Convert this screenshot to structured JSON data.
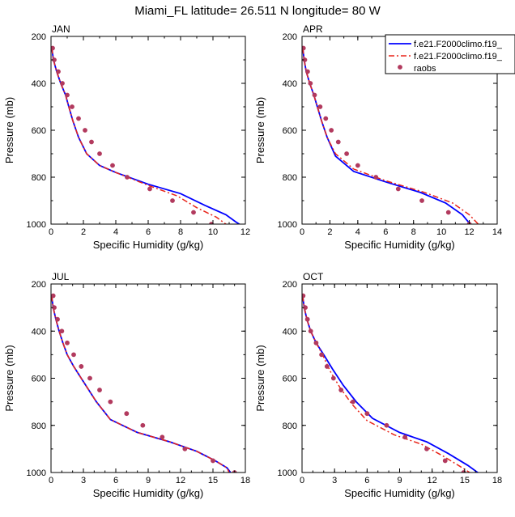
{
  "title": "Miami_FL  latitude= 26.511 N longitude= 80 W",
  "legend": {
    "entries": [
      "f.e21.F2000climo.f19_",
      "f.e21.F2000climo.f19_",
      "raobs"
    ]
  },
  "colors": {
    "model1": "#0000ff",
    "model2": "#e8251a",
    "obs": "#b23a5e"
  },
  "chart_data": [
    {
      "type": "line",
      "month": "JAN",
      "xlabel": "Specific Humidity (g/kg)",
      "ylabel": "Pressure (mb)",
      "xlim": [
        0,
        12
      ],
      "xticks": [
        0,
        2,
        4,
        6,
        8,
        10,
        12
      ],
      "ylim": [
        1000,
        200
      ],
      "yticks": [
        200,
        400,
        600,
        800,
        1000
      ],
      "series": [
        {
          "style": "solid",
          "points": [
            [
              0.05,
              250
            ],
            [
              0.15,
              300
            ],
            [
              0.35,
              350
            ],
            [
              0.6,
              400
            ],
            [
              0.9,
              450
            ],
            [
              1.1,
              500
            ],
            [
              1.35,
              560
            ],
            [
              1.7,
              630
            ],
            [
              2.2,
              700
            ],
            [
              3.0,
              750
            ],
            [
              4.0,
              780
            ],
            [
              6.0,
              830
            ],
            [
              8.0,
              870
            ],
            [
              9.5,
              920
            ],
            [
              10.8,
              960
            ],
            [
              11.4,
              990
            ],
            [
              11.85,
              1010
            ]
          ]
        },
        {
          "style": "dashed",
          "points": [
            [
              0.05,
              250
            ],
            [
              0.15,
              300
            ],
            [
              0.35,
              350
            ],
            [
              0.6,
              400
            ],
            [
              0.9,
              450
            ],
            [
              1.1,
              500
            ],
            [
              1.35,
              560
            ],
            [
              1.7,
              630
            ],
            [
              2.2,
              700
            ],
            [
              3.0,
              750
            ],
            [
              4.0,
              780
            ],
            [
              6.0,
              835
            ],
            [
              7.8,
              880
            ],
            [
              9.0,
              930
            ],
            [
              10.2,
              970
            ],
            [
              11.0,
              1010
            ]
          ]
        },
        {
          "name": "raobs",
          "style": "markers",
          "points": [
            [
              0.1,
              250
            ],
            [
              0.2,
              300
            ],
            [
              0.45,
              350
            ],
            [
              0.7,
              400
            ],
            [
              1.0,
              450
            ],
            [
              1.3,
              500
            ],
            [
              1.7,
              550
            ],
            [
              2.1,
              600
            ],
            [
              2.5,
              650
            ],
            [
              3.0,
              700
            ],
            [
              3.8,
              750
            ],
            [
              4.7,
              800
            ],
            [
              6.1,
              850
            ],
            [
              7.5,
              900
            ],
            [
              8.8,
              950
            ],
            [
              9.9,
              1000
            ]
          ]
        }
      ]
    },
    {
      "type": "line",
      "month": "APR",
      "xlabel": "Specific Humidity (g/kg)",
      "ylabel": "Pressure (mb)",
      "xlim": [
        0,
        14
      ],
      "xticks": [
        0,
        2,
        4,
        6,
        8,
        10,
        12,
        14
      ],
      "ylim": [
        1000,
        200
      ],
      "yticks": [
        200,
        400,
        600,
        800,
        1000
      ],
      "series": [
        {
          "style": "solid",
          "points": [
            [
              0.05,
              250
            ],
            [
              0.15,
              300
            ],
            [
              0.3,
              350
            ],
            [
              0.55,
              400
            ],
            [
              0.85,
              450
            ],
            [
              1.1,
              500
            ],
            [
              1.4,
              560
            ],
            [
              1.8,
              630
            ],
            [
              2.4,
              710
            ],
            [
              3.7,
              775
            ],
            [
              6.0,
              820
            ],
            [
              8.5,
              865
            ],
            [
              10.3,
              910
            ],
            [
              11.5,
              960
            ],
            [
              12.2,
              1010
            ]
          ]
        },
        {
          "style": "dashed",
          "points": [
            [
              0.05,
              250
            ],
            [
              0.15,
              300
            ],
            [
              0.3,
              350
            ],
            [
              0.55,
              400
            ],
            [
              0.85,
              450
            ],
            [
              1.1,
              500
            ],
            [
              1.4,
              560
            ],
            [
              1.8,
              630
            ],
            [
              2.4,
              700
            ],
            [
              3.7,
              765
            ],
            [
              6.0,
              815
            ],
            [
              8.8,
              865
            ],
            [
              10.8,
              910
            ],
            [
              12.0,
              960
            ],
            [
              12.8,
              1010
            ]
          ]
        },
        {
          "name": "raobs",
          "style": "markers",
          "points": [
            [
              0.1,
              250
            ],
            [
              0.2,
              300
            ],
            [
              0.4,
              350
            ],
            [
              0.6,
              400
            ],
            [
              0.9,
              450
            ],
            [
              1.3,
              500
            ],
            [
              1.7,
              550
            ],
            [
              2.1,
              600
            ],
            [
              2.6,
              650
            ],
            [
              3.2,
              700
            ],
            [
              4.0,
              750
            ],
            [
              5.3,
              800
            ],
            [
              6.9,
              850
            ],
            [
              8.6,
              900
            ],
            [
              10.5,
              950
            ],
            [
              12.0,
              1000
            ]
          ]
        }
      ]
    },
    {
      "type": "line",
      "month": "JUL",
      "xlabel": "Specific Humidity (g/kg)",
      "ylabel": "Pressure (mb)",
      "xlim": [
        0,
        18
      ],
      "xticks": [
        0,
        3,
        6,
        9,
        12,
        15,
        18
      ],
      "ylim": [
        1000,
        200
      ],
      "yticks": [
        200,
        400,
        600,
        800,
        1000
      ],
      "series": [
        {
          "style": "solid",
          "points": [
            [
              0.05,
              250
            ],
            [
              0.2,
              300
            ],
            [
              0.45,
              350
            ],
            [
              0.75,
              400
            ],
            [
              1.1,
              450
            ],
            [
              1.5,
              500
            ],
            [
              2.1,
              550
            ],
            [
              2.8,
              600
            ],
            [
              3.5,
              650
            ],
            [
              4.2,
              700
            ],
            [
              5.5,
              775
            ],
            [
              8.0,
              830
            ],
            [
              11.0,
              870
            ],
            [
              13.5,
              910
            ],
            [
              15.2,
              950
            ],
            [
              16.3,
              980
            ],
            [
              16.8,
              1010
            ]
          ]
        },
        {
          "style": "dashed",
          "points": [
            [
              0.05,
              250
            ],
            [
              0.2,
              300
            ],
            [
              0.45,
              350
            ],
            [
              0.75,
              400
            ],
            [
              1.1,
              450
            ],
            [
              1.5,
              500
            ],
            [
              2.1,
              550
            ],
            [
              2.8,
              600
            ],
            [
              3.5,
              650
            ],
            [
              4.2,
              700
            ],
            [
              5.5,
              775
            ],
            [
              8.0,
              830
            ],
            [
              11.0,
              870
            ],
            [
              13.5,
              910
            ],
            [
              15.2,
              950
            ],
            [
              16.3,
              980
            ],
            [
              16.6,
              1010
            ]
          ]
        },
        {
          "name": "raobs",
          "style": "markers",
          "points": [
            [
              0.2,
              250
            ],
            [
              0.3,
              300
            ],
            [
              0.6,
              350
            ],
            [
              1.0,
              400
            ],
            [
              1.5,
              450
            ],
            [
              2.1,
              500
            ],
            [
              2.8,
              550
            ],
            [
              3.6,
              600
            ],
            [
              4.5,
              650
            ],
            [
              5.5,
              700
            ],
            [
              7.0,
              750
            ],
            [
              8.5,
              800
            ],
            [
              10.3,
              850
            ],
            [
              12.4,
              900
            ],
            [
              15.0,
              950
            ],
            [
              17.0,
              1000
            ]
          ]
        }
      ]
    },
    {
      "type": "line",
      "month": "OCT",
      "xlabel": "Specific Humidity (g/kg)",
      "ylabel": "Pressure (mb)",
      "xlim": [
        0,
        18
      ],
      "xticks": [
        0,
        3,
        6,
        9,
        12,
        15,
        18
      ],
      "ylim": [
        1000,
        200
      ],
      "yticks": [
        200,
        400,
        600,
        800,
        1000
      ],
      "series": [
        {
          "style": "solid",
          "points": [
            [
              0.05,
              250
            ],
            [
              0.2,
              300
            ],
            [
              0.45,
              350
            ],
            [
              0.8,
              400
            ],
            [
              1.3,
              450
            ],
            [
              2.0,
              500
            ],
            [
              2.8,
              560
            ],
            [
              3.8,
              630
            ],
            [
              5.0,
              700
            ],
            [
              6.5,
              770
            ],
            [
              9.0,
              830
            ],
            [
              11.5,
              870
            ],
            [
              13.5,
              920
            ],
            [
              15.3,
              970
            ],
            [
              16.5,
              1010
            ]
          ]
        },
        {
          "style": "dashed",
          "points": [
            [
              0.05,
              250
            ],
            [
              0.2,
              300
            ],
            [
              0.45,
              350
            ],
            [
              0.8,
              400
            ],
            [
              1.3,
              450
            ],
            [
              1.9,
              500
            ],
            [
              2.6,
              570
            ],
            [
              3.5,
              640
            ],
            [
              4.6,
              710
            ],
            [
              6.0,
              780
            ],
            [
              8.5,
              840
            ],
            [
              11.0,
              880
            ],
            [
              13.0,
              930
            ],
            [
              14.6,
              975
            ],
            [
              15.8,
              1010
            ]
          ]
        },
        {
          "name": "raobs",
          "style": "markers",
          "points": [
            [
              0.1,
              250
            ],
            [
              0.3,
              300
            ],
            [
              0.5,
              350
            ],
            [
              0.8,
              400
            ],
            [
              1.3,
              450
            ],
            [
              1.8,
              500
            ],
            [
              2.3,
              550
            ],
            [
              2.9,
              600
            ],
            [
              3.6,
              650
            ],
            [
              4.7,
              700
            ],
            [
              6.0,
              750
            ],
            [
              7.8,
              800
            ],
            [
              9.5,
              850
            ],
            [
              11.5,
              900
            ],
            [
              13.2,
              950
            ],
            [
              14.9,
              1000
            ]
          ]
        }
      ]
    }
  ]
}
